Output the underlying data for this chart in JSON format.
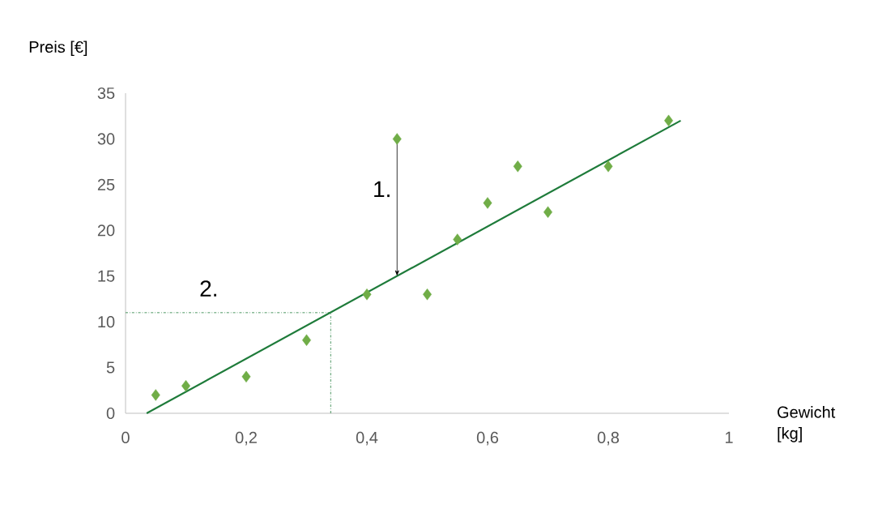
{
  "chart_data": {
    "type": "scatter",
    "xlabel": "Gewicht [kg]",
    "ylabel": "Preis [€]",
    "xlim": [
      0,
      1
    ],
    "ylim": [
      0,
      35
    ],
    "xticks": [
      {
        "value": 0,
        "label": "0"
      },
      {
        "value": 0.2,
        "label": "0,2"
      },
      {
        "value": 0.4,
        "label": "0,4"
      },
      {
        "value": 0.6,
        "label": "0,6"
      },
      {
        "value": 0.8,
        "label": "0,8"
      },
      {
        "value": 1,
        "label": "1"
      }
    ],
    "yticks": [
      0,
      5,
      10,
      15,
      20,
      25,
      30,
      35
    ],
    "marker": "diamond",
    "series": [
      {
        "color": "#70ad47",
        "x": [
          0.05,
          0.1,
          0.2,
          0.3,
          0.4,
          0.45,
          0.5,
          0.55,
          0.6,
          0.65,
          0.7,
          0.8,
          0.9
        ],
        "values": [
          2,
          3,
          4,
          8,
          13,
          30,
          13,
          19,
          23,
          27,
          22,
          27,
          32
        ]
      },
      {
        "type": "line",
        "marker": "none",
        "color": "#1e7b3a",
        "x": [
          0.035,
          0.92
        ],
        "values": [
          0,
          32
        ]
      }
    ],
    "ref_lines": [
      {
        "axis": "y",
        "value": 11,
        "color": "#1e7b3a",
        "line_style": "dashdot"
      },
      {
        "axis": "x",
        "value": 0.34,
        "color": "#1e7b3a",
        "line_style": "dashdot"
      }
    ],
    "annotations": [
      {
        "text": "1.",
        "x": 0.45,
        "y": 30
      },
      "2."
    ]
  }
}
